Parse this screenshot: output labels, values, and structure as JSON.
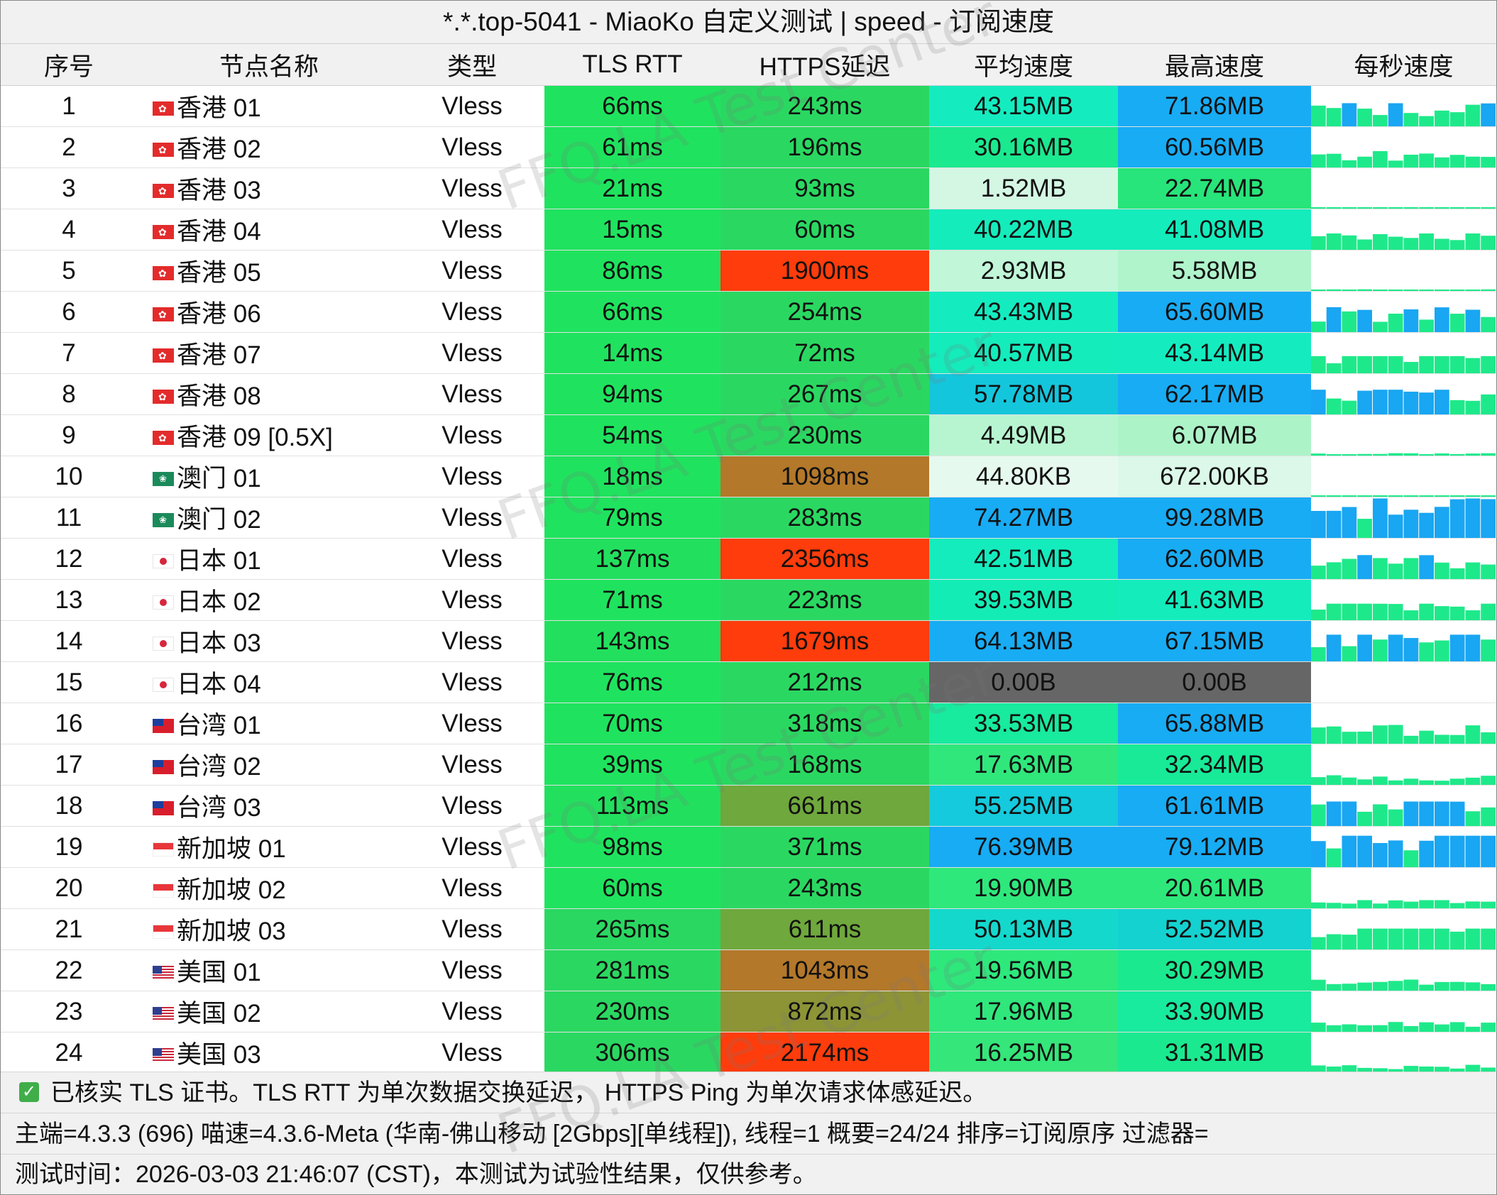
{
  "title": "*.*.top-5041 - MiaoKo 自定义测试 | speed - 订阅速度",
  "columns": [
    "序号",
    "节点名称",
    "类型",
    "TLS RTT",
    "HTTPS延迟",
    "平均速度",
    "最高速度",
    "每秒速度"
  ],
  "rows": [
    {
      "idx": "1",
      "flag": "hk",
      "name": "香港 01",
      "type": "Vless",
      "tls": "66ms",
      "https": "243ms",
      "avg": "43.15MB",
      "max": "71.86MB",
      "tls_bg": "#1fe35e",
      "https_bg": "#2ad861",
      "avg_bg": "#14ecc0",
      "max_bg": "#18acf4"
    },
    {
      "idx": "2",
      "flag": "hk",
      "name": "香港 02",
      "type": "Vless",
      "tls": "61ms",
      "https": "196ms",
      "avg": "30.16MB",
      "max": "60.56MB",
      "tls_bg": "#1fe35e",
      "https_bg": "#2ad861",
      "avg_bg": "#1be98f",
      "max_bg": "#18acf4"
    },
    {
      "idx": "3",
      "flag": "hk",
      "name": "香港 03",
      "type": "Vless",
      "tls": "21ms",
      "https": "93ms",
      "avg": "1.52MB",
      "max": "22.74MB",
      "tls_bg": "#1fe35e",
      "https_bg": "#2ad861",
      "avg_bg": "#d4f7e4",
      "max_bg": "#27e57a"
    },
    {
      "idx": "4",
      "flag": "hk",
      "name": "香港 04",
      "type": "Vless",
      "tls": "15ms",
      "https": "60ms",
      "avg": "40.22MB",
      "max": "41.08MB",
      "tls_bg": "#1fe35e",
      "https_bg": "#2ad861",
      "avg_bg": "#14ecbc",
      "max_bg": "#14ecbc"
    },
    {
      "idx": "5",
      "flag": "hk",
      "name": "香港 05",
      "type": "Vless",
      "tls": "86ms",
      "https": "1900ms",
      "avg": "2.93MB",
      "max": "5.58MB",
      "tls_bg": "#1fe35e",
      "https_bg": "#fe3c0c",
      "avg_bg": "#c1f6d8",
      "max_bg": "#b0f4cc"
    },
    {
      "idx": "6",
      "flag": "hk",
      "name": "香港 06",
      "type": "Vless",
      "tls": "66ms",
      "https": "254ms",
      "avg": "43.43MB",
      "max": "65.60MB",
      "tls_bg": "#1fe35e",
      "https_bg": "#2ad861",
      "avg_bg": "#14ecc0",
      "max_bg": "#18acf4"
    },
    {
      "idx": "7",
      "flag": "hk",
      "name": "香港 07",
      "type": "Vless",
      "tls": "14ms",
      "https": "72ms",
      "avg": "40.57MB",
      "max": "43.14MB",
      "tls_bg": "#1fe35e",
      "https_bg": "#2ad861",
      "avg_bg": "#14ecbc",
      "max_bg": "#14ecc0"
    },
    {
      "idx": "8",
      "flag": "hk",
      "name": "香港 08",
      "type": "Vless",
      "tls": "94ms",
      "https": "267ms",
      "avg": "57.78MB",
      "max": "62.17MB",
      "tls_bg": "#1fe35e",
      "https_bg": "#2ad861",
      "avg_bg": "#14c6dc",
      "max_bg": "#18acf4"
    },
    {
      "idx": "9",
      "flag": "hk",
      "name": "香港 09 [0.5X]",
      "type": "Vless",
      "tls": "54ms",
      "https": "230ms",
      "avg": "4.49MB",
      "max": "6.07MB",
      "tls_bg": "#1fe35e",
      "https_bg": "#2ad861",
      "avg_bg": "#b7f5d0",
      "max_bg": "#adf3c8"
    },
    {
      "idx": "10",
      "flag": "mo",
      "name": "澳门 01",
      "type": "Vless",
      "tls": "18ms",
      "https": "1098ms",
      "avg": "44.80KB",
      "max": "672.00KB",
      "tls_bg": "#1fe35e",
      "https_bg": "#b3782a",
      "avg_bg": "#e6f9ee",
      "max_bg": "#dbf8e8"
    },
    {
      "idx": "11",
      "flag": "mo",
      "name": "澳门 02",
      "type": "Vless",
      "tls": "79ms",
      "https": "283ms",
      "avg": "74.27MB",
      "max": "99.28MB",
      "tls_bg": "#1fe35e",
      "https_bg": "#2ad861",
      "avg_bg": "#18acf4",
      "max_bg": "#18acf4"
    },
    {
      "idx": "12",
      "flag": "jp",
      "name": "日本 01",
      "type": "Vless",
      "tls": "137ms",
      "https": "2356ms",
      "avg": "42.51MB",
      "max": "62.60MB",
      "tls_bg": "#22e05e",
      "https_bg": "#fe3c0c",
      "avg_bg": "#14ecbe",
      "max_bg": "#18acf4"
    },
    {
      "idx": "13",
      "flag": "jp",
      "name": "日本 02",
      "type": "Vless",
      "tls": "71ms",
      "https": "223ms",
      "avg": "39.53MB",
      "max": "41.63MB",
      "tls_bg": "#1fe35e",
      "https_bg": "#2ad861",
      "avg_bg": "#14ecb6",
      "max_bg": "#14ecbc"
    },
    {
      "idx": "14",
      "flag": "jp",
      "name": "日本 03",
      "type": "Vless",
      "tls": "143ms",
      "https": "1679ms",
      "avg": "64.13MB",
      "max": "67.15MB",
      "tls_bg": "#22e05e",
      "https_bg": "#fe3c0c",
      "avg_bg": "#18acf4",
      "max_bg": "#18acf4"
    },
    {
      "idx": "15",
      "flag": "jp",
      "name": "日本 04",
      "type": "Vless",
      "tls": "76ms",
      "https": "212ms",
      "avg": "0.00B",
      "max": "0.00B",
      "tls_bg": "#1fe35e",
      "https_bg": "#2ad861",
      "avg_bg": "#666666",
      "max_bg": "#666666"
    },
    {
      "idx": "16",
      "flag": "tw",
      "name": "台湾 01",
      "type": "Vless",
      "tls": "70ms",
      "https": "318ms",
      "avg": "33.53MB",
      "max": "65.88MB",
      "tls_bg": "#1fe35e",
      "https_bg": "#2ad861",
      "avg_bg": "#18ea9e",
      "max_bg": "#18acf4"
    },
    {
      "idx": "17",
      "flag": "tw",
      "name": "台湾 02",
      "type": "Vless",
      "tls": "39ms",
      "https": "168ms",
      "avg": "17.63MB",
      "max": "32.34MB",
      "tls_bg": "#1fe35e",
      "https_bg": "#2ad861",
      "avg_bg": "#30e77c",
      "max_bg": "#18ea98"
    },
    {
      "idx": "18",
      "flag": "tw",
      "name": "台湾 03",
      "type": "Vless",
      "tls": "113ms",
      "https": "661ms",
      "avg": "55.25MB",
      "max": "61.61MB",
      "tls_bg": "#22e05e",
      "https_bg": "#6fa83c",
      "avg_bg": "#14cadc",
      "max_bg": "#18acf4"
    },
    {
      "idx": "19",
      "flag": "sg",
      "name": "新加坡 01",
      "type": "Vless",
      "tls": "98ms",
      "https": "371ms",
      "avg": "76.39MB",
      "max": "79.12MB",
      "tls_bg": "#1fe35e",
      "https_bg": "#2ad861",
      "avg_bg": "#18acf4",
      "max_bg": "#18acf4"
    },
    {
      "idx": "20",
      "flag": "sg",
      "name": "新加坡 02",
      "type": "Vless",
      "tls": "60ms",
      "https": "243ms",
      "avg": "19.90MB",
      "max": "20.61MB",
      "tls_bg": "#1fe35e",
      "https_bg": "#2ad861",
      "avg_bg": "#2ee87c",
      "max_bg": "#2ee87c"
    },
    {
      "idx": "21",
      "flag": "sg",
      "name": "新加坡 03",
      "type": "Vless",
      "tls": "265ms",
      "https": "611ms",
      "avg": "50.13MB",
      "max": "52.52MB",
      "tls_bg": "#2ad861",
      "https_bg": "#6fa83c",
      "avg_bg": "#14d8cc",
      "max_bg": "#14d2d0"
    },
    {
      "idx": "22",
      "flag": "us",
      "name": "美国 01",
      "type": "Vless",
      "tls": "281ms",
      "https": "1043ms",
      "avg": "19.56MB",
      "max": "30.29MB",
      "tls_bg": "#2ad861",
      "https_bg": "#b3782a",
      "avg_bg": "#2ee87c",
      "max_bg": "#1be98f"
    },
    {
      "idx": "23",
      "flag": "us",
      "name": "美国 02",
      "type": "Vless",
      "tls": "230ms",
      "https": "872ms",
      "avg": "17.96MB",
      "max": "33.90MB",
      "tls_bg": "#2ad861",
      "https_bg": "#8c9436",
      "avg_bg": "#30e77c",
      "max_bg": "#18ea9e"
    },
    {
      "idx": "24",
      "flag": "us",
      "name": "美国 03",
      "type": "Vless",
      "tls": "306ms",
      "https": "2174ms",
      "avg": "16.25MB",
      "max": "31.31MB",
      "tls_bg": "#2ad861",
      "https_bg": "#fe3c0c",
      "avg_bg": "#35e67a",
      "max_bg": "#1be98f"
    }
  ],
  "footer": {
    "line1": "已核实 TLS 证书。TLS RTT 为单次数据交换延迟， HTTPS Ping 为单次请求体感延迟。",
    "line2": "主端=4.3.3 (696) 喵速=4.3.6-Meta (华南-佛山移动 [2Gbps][单线程]), 线程=1 概要=24/24 排序=订阅原序 过滤器=",
    "line3": "测试时间：2026-03-03 21:46:07 (CST)，本测试为试验性结果，仅供参考。"
  },
  "watermark": "FFQ.LA Test Center",
  "colors": {
    "header_bg": "#f1f1f1",
    "check": "#3fae49",
    "spark_blue": "#19a6f2",
    "spark_green": "#1ee98a"
  }
}
